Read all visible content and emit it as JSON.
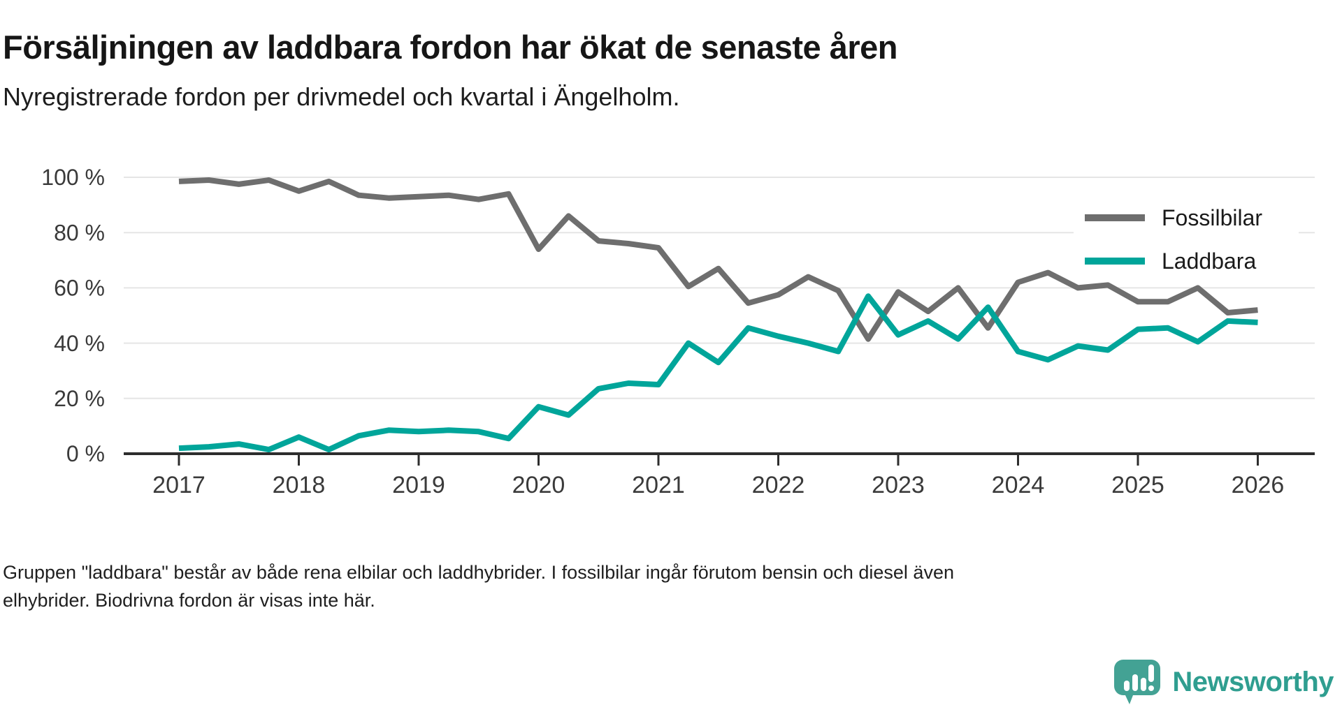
{
  "header": {
    "title": "Försäljningen av laddbara fordon har ökat de senaste åren",
    "subtitle": "Nyregistrerade fordon per drivmedel och kvartal i Ängelholm."
  },
  "legend": {
    "items": [
      {
        "label": "Fossilbilar",
        "color": "#6e6e6e"
      },
      {
        "label": "Laddbara",
        "color": "#00a59a"
      }
    ]
  },
  "chart_data": {
    "type": "line",
    "title": "Försäljningen av laddbara fordon har ökat de senaste åren",
    "subtitle": "Nyregistrerade fordon per drivmedel och kvartal i Ängelholm.",
    "x_unit": "kvartal (quarterly)",
    "x": [
      2017.0,
      2017.25,
      2017.5,
      2017.75,
      2018.0,
      2018.25,
      2018.5,
      2018.75,
      2019.0,
      2019.25,
      2019.5,
      2019.75,
      2020.0,
      2020.25,
      2020.5,
      2020.75,
      2021.0,
      2021.25,
      2021.5,
      2021.75,
      2022.0,
      2022.25,
      2022.5,
      2022.75,
      2023.0,
      2023.25,
      2023.5,
      2023.75,
      2024.0,
      2024.25,
      2024.5,
      2024.75,
      2025.0,
      2025.25,
      2025.5,
      2025.75,
      2026.0
    ],
    "series": [
      {
        "name": "Fossilbilar",
        "color": "#6e6e6e",
        "values": [
          98.5,
          99,
          97.5,
          99,
          95,
          98.5,
          93.5,
          92.5,
          93,
          93.5,
          92,
          94,
          74,
          86,
          77,
          76,
          74.5,
          60.5,
          67,
          54.5,
          57.5,
          64,
          59,
          41.5,
          58.5,
          51.5,
          60,
          45.5,
          62,
          65.5,
          60,
          61,
          55,
          55,
          60,
          51,
          52
        ]
      },
      {
        "name": "Laddbara",
        "color": "#00a59a",
        "values": [
          2,
          2.5,
          3.5,
          1.5,
          6,
          1.5,
          6.5,
          8.5,
          8,
          8.5,
          8,
          5.5,
          17,
          14,
          23.5,
          25.5,
          25,
          40,
          33,
          45.5,
          42.5,
          40,
          37,
          57,
          43,
          48,
          41.5,
          53,
          37,
          34,
          39,
          37.5,
          45,
          45.5,
          40.5,
          48,
          47.5
        ]
      }
    ],
    "x_ticks": [
      "2017",
      "2018",
      "2019",
      "2020",
      "2021",
      "2022",
      "2023",
      "2024",
      "2025",
      "2026"
    ],
    "y_ticks": [
      "0 %",
      "20 %",
      "40 %",
      "60 %",
      "80 %",
      "100 %"
    ],
    "ylim": [
      0,
      100
    ],
    "grid": "horizontal",
    "legend_position": "top-right"
  },
  "footer": {
    "line1": "Gruppen \"laddbara\" består av både rena elbilar och laddhybrider. I fossilbilar ingår förutom bensin och diesel även",
    "line2": "elhybrider. Biodrivna fordon är visas inte här."
  },
  "branding": {
    "name": "Newsworthy",
    "text_color": "#2f9e90",
    "icon_color": "#43a294"
  }
}
